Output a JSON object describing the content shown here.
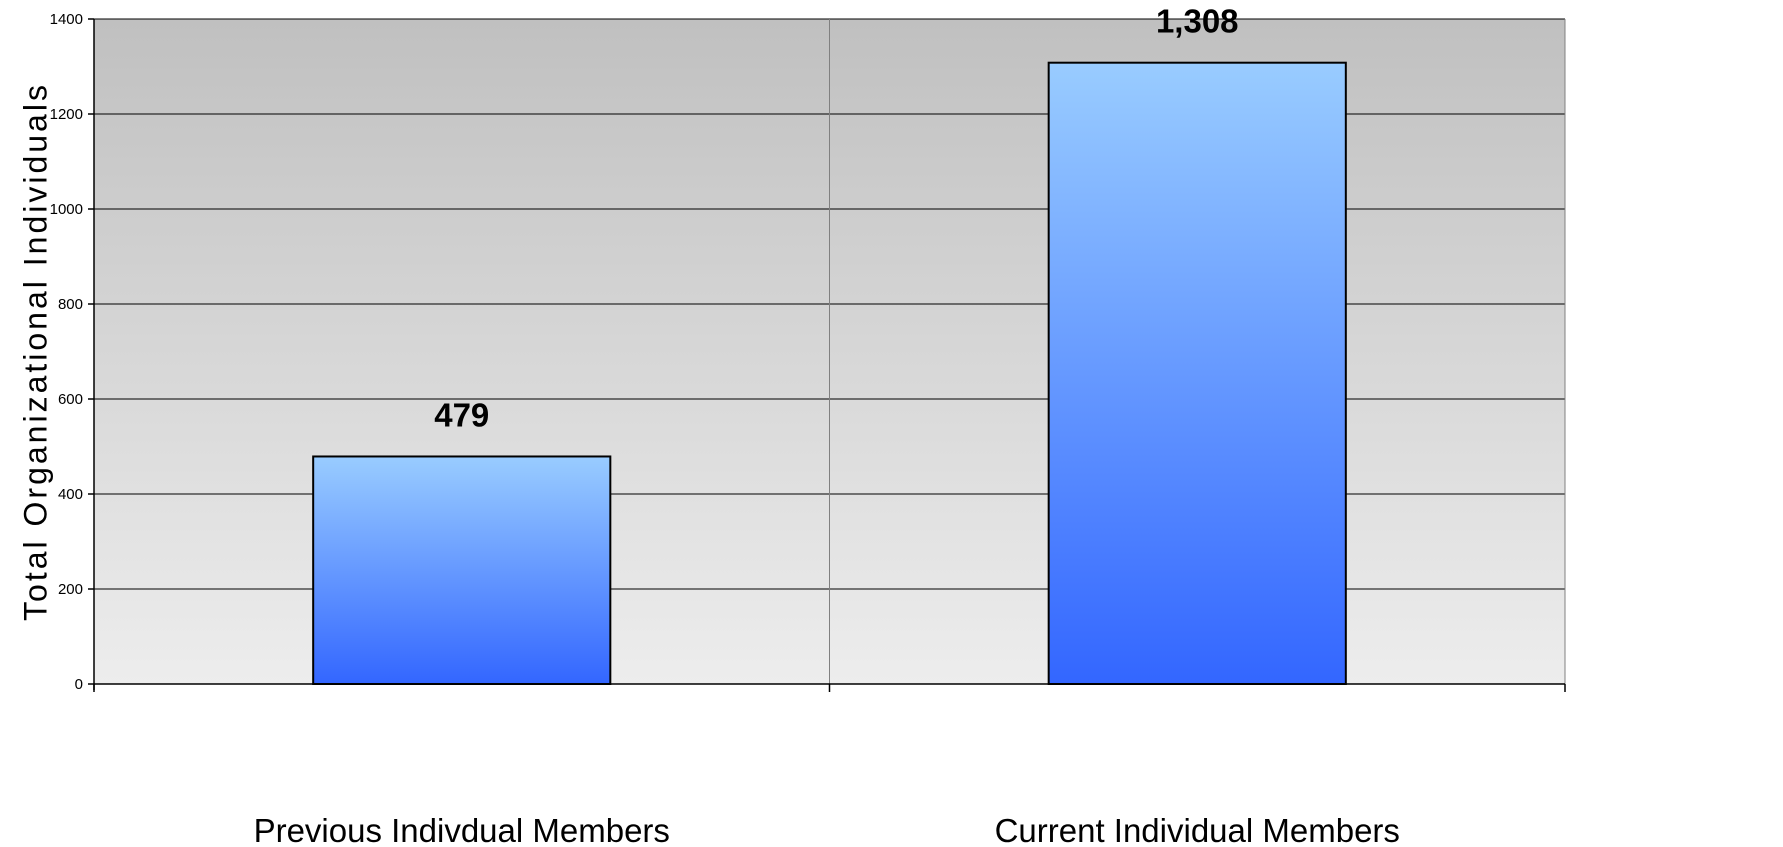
{
  "chart_data": {
    "type": "bar",
    "categories": [
      "Previous Indivdual Members",
      "Current Individual Members"
    ],
    "values": [
      479,
      1308
    ],
    "value_labels": [
      "479",
      "1,308"
    ],
    "ylabel": "Total Organizational Individuals",
    "xlabel": "",
    "ylim": [
      0,
      1400
    ],
    "yticks": [
      0,
      200,
      400,
      600,
      800,
      1000,
      1200,
      1400
    ],
    "ytick_labels": [
      "0",
      "200",
      "400",
      "600",
      "800",
      "1000",
      "1200",
      "1400"
    ],
    "grid": true,
    "legend": "none",
    "colors": {
      "bar_top": "#99CCFF",
      "bar_bottom": "#3366FF",
      "plot_bg_top": "#C0C0C0",
      "plot_bg_bottom": "#EDEDED",
      "grid": "#000000",
      "bar_edge": "#000000"
    }
  }
}
